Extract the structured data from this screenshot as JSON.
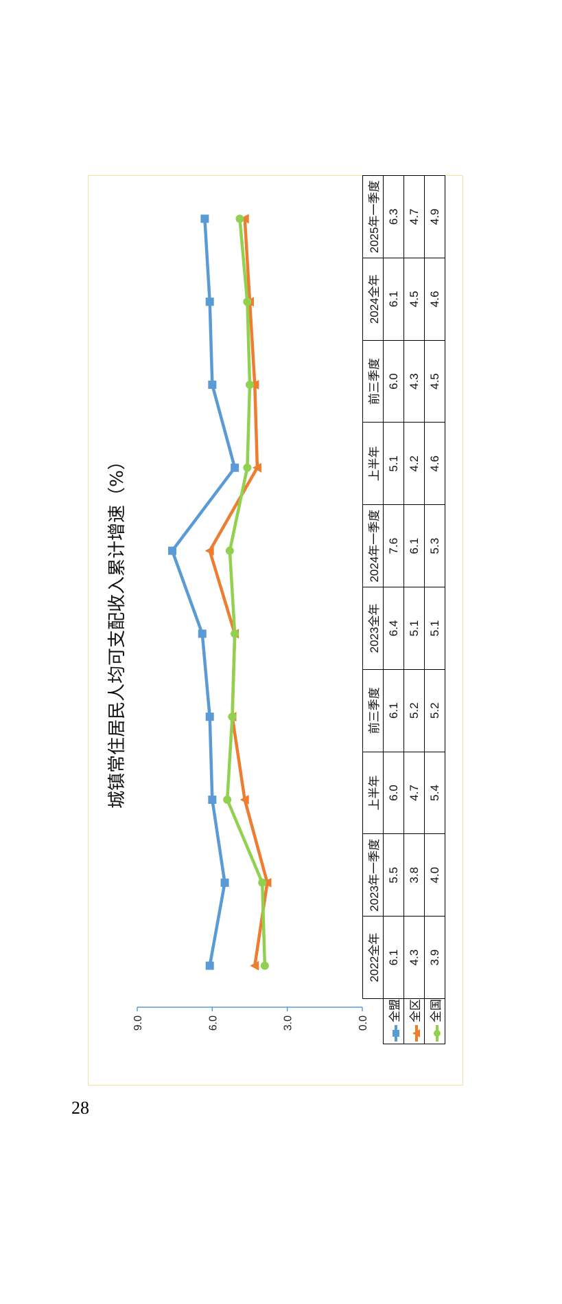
{
  "page_number": "28",
  "chart_data": {
    "type": "line",
    "title": "城镇常住居民人均可支配收入累计增速（%）",
    "categories": [
      "2022全年",
      "2023年一季度",
      "上半年",
      "前三季度",
      "2023全年",
      "2024年一季度",
      "上半年",
      "前三季度",
      "2024全年",
      "2025年一季度"
    ],
    "ylim": [
      0,
      9
    ],
    "yticks": [
      "0.0",
      "3.0",
      "6.0",
      "9.0"
    ],
    "grid": false,
    "legend": "data-table",
    "rotated": "90-degrees-counterclockwise",
    "series": [
      {
        "name": "全盟",
        "color": "#5B9BD5",
        "marker": "square",
        "values": [
          6.1,
          5.5,
          6.0,
          6.1,
          6.4,
          7.6,
          5.1,
          6.0,
          6.1,
          6.3
        ]
      },
      {
        "name": "全区",
        "color": "#ED7D31",
        "marker": "triangle",
        "values": [
          4.3,
          3.8,
          4.7,
          5.2,
          5.1,
          6.1,
          4.2,
          4.3,
          4.5,
          4.7
        ]
      },
      {
        "name": "全国",
        "color": "#92D050",
        "marker": "circle",
        "values": [
          3.9,
          4.0,
          5.4,
          5.2,
          5.1,
          5.3,
          4.6,
          4.5,
          4.6,
          4.9
        ]
      }
    ]
  }
}
